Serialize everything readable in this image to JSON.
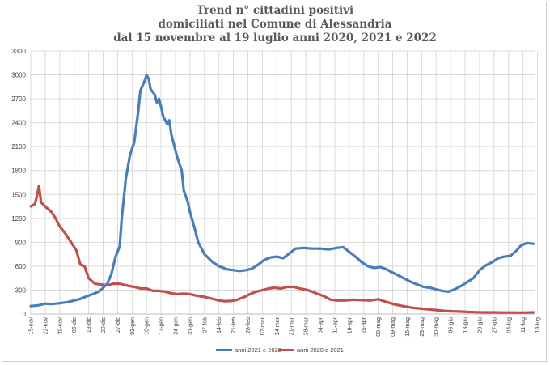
{
  "chart_data": {
    "type": "line",
    "title": [
      "Trend n° cittadini positivi",
      "domiciliati nel Comune di Alessandria",
      "dal 15 novembre al 19 luglio anni 2020, 2021 e 2022"
    ],
    "ylim": [
      0,
      3300
    ],
    "yticks": [
      0,
      300,
      600,
      900,
      1200,
      1500,
      1800,
      2100,
      2400,
      2700,
      3000,
      3300
    ],
    "x_ticklabels": [
      "15-nov",
      "22-nov",
      "29-nov",
      "06-dic",
      "13-dic",
      "20-dic",
      "27-dic",
      "03-gen",
      "10-gen",
      "17-gen",
      "24-gen",
      "31-gen",
      "07-feb",
      "14-feb",
      "21-feb",
      "28-feb",
      "07-mar",
      "14-mar",
      "21-mar",
      "28-mar",
      "04-apr",
      "11-apr",
      "18-apr",
      "25-apr",
      "02-mag",
      "09-mag",
      "16-mag",
      "23-mag",
      "30-mag",
      "06-giu",
      "13-giu",
      "20-giu",
      "27-giu",
      "04-lug",
      "11-lug",
      "18-lug"
    ],
    "grid": true,
    "legend_position": "bottom",
    "series": [
      {
        "name": "anni 2021 e 2022",
        "color": "#4a7ebb",
        "points": [
          [
            0,
            100
          ],
          [
            4,
            110
          ],
          [
            7,
            130
          ],
          [
            10,
            125
          ],
          [
            14,
            135
          ],
          [
            18,
            150
          ],
          [
            21,
            170
          ],
          [
            24,
            190
          ],
          [
            27,
            220
          ],
          [
            30,
            250
          ],
          [
            33,
            280
          ],
          [
            35,
            330
          ],
          [
            37,
            380
          ],
          [
            39,
            500
          ],
          [
            41,
            720
          ],
          [
            43,
            850
          ],
          [
            44,
            1200
          ],
          [
            46,
            1700
          ],
          [
            48,
            2000
          ],
          [
            50,
            2150
          ],
          [
            52,
            2550
          ],
          [
            53,
            2800
          ],
          [
            55,
            2920
          ],
          [
            56,
            3000
          ],
          [
            57,
            2950
          ],
          [
            58,
            2820
          ],
          [
            60,
            2750
          ],
          [
            61,
            2650
          ],
          [
            62,
            2700
          ],
          [
            63,
            2600
          ],
          [
            64,
            2480
          ],
          [
            66,
            2380
          ],
          [
            67,
            2430
          ],
          [
            68,
            2250
          ],
          [
            70,
            2050
          ],
          [
            71,
            1950
          ],
          [
            73,
            1800
          ],
          [
            74,
            1550
          ],
          [
            76,
            1400
          ],
          [
            77,
            1280
          ],
          [
            79,
            1100
          ],
          [
            81,
            900
          ],
          [
            84,
            750
          ],
          [
            88,
            650
          ],
          [
            91,
            600
          ],
          [
            95,
            560
          ],
          [
            98,
            550
          ],
          [
            101,
            540
          ],
          [
            104,
            550
          ],
          [
            107,
            570
          ],
          [
            110,
            620
          ],
          [
            113,
            680
          ],
          [
            116,
            710
          ],
          [
            119,
            720
          ],
          [
            122,
            700
          ],
          [
            125,
            760
          ],
          [
            128,
            820
          ],
          [
            132,
            830
          ],
          [
            136,
            820
          ],
          [
            140,
            820
          ],
          [
            144,
            810
          ],
          [
            148,
            830
          ],
          [
            151,
            840
          ],
          [
            154,
            780
          ],
          [
            157,
            720
          ],
          [
            160,
            650
          ],
          [
            163,
            600
          ],
          [
            166,
            580
          ],
          [
            169,
            590
          ],
          [
            172,
            560
          ],
          [
            175,
            520
          ],
          [
            178,
            480
          ],
          [
            181,
            440
          ],
          [
            184,
            400
          ],
          [
            187,
            370
          ],
          [
            190,
            340
          ],
          [
            193,
            330
          ],
          [
            196,
            310
          ],
          [
            199,
            290
          ],
          [
            202,
            280
          ],
          [
            205,
            310
          ],
          [
            208,
            350
          ],
          [
            211,
            400
          ],
          [
            214,
            450
          ],
          [
            217,
            550
          ],
          [
            220,
            610
          ],
          [
            223,
            650
          ],
          [
            226,
            700
          ],
          [
            229,
            720
          ],
          [
            232,
            730
          ],
          [
            235,
            800
          ],
          [
            237,
            860
          ],
          [
            240,
            890
          ],
          [
            243,
            880
          ]
        ]
      },
      {
        "name": "anni 2020 e 2021",
        "color": "#c0504d",
        "points": [
          [
            0,
            1350
          ],
          [
            2,
            1380
          ],
          [
            3,
            1480
          ],
          [
            4,
            1610
          ],
          [
            5,
            1400
          ],
          [
            7,
            1350
          ],
          [
            10,
            1280
          ],
          [
            12,
            1200
          ],
          [
            14,
            1100
          ],
          [
            17,
            1000
          ],
          [
            20,
            880
          ],
          [
            22,
            800
          ],
          [
            24,
            620
          ],
          [
            26,
            600
          ],
          [
            28,
            450
          ],
          [
            31,
            380
          ],
          [
            34,
            370
          ],
          [
            37,
            360
          ],
          [
            40,
            380
          ],
          [
            43,
            380
          ],
          [
            46,
            360
          ],
          [
            50,
            340
          ],
          [
            53,
            320
          ],
          [
            56,
            320
          ],
          [
            59,
            290
          ],
          [
            62,
            290
          ],
          [
            65,
            280
          ],
          [
            68,
            260
          ],
          [
            71,
            250
          ],
          [
            74,
            255
          ],
          [
            77,
            250
          ],
          [
            80,
            230
          ],
          [
            84,
            215
          ],
          [
            88,
            190
          ],
          [
            91,
            170
          ],
          [
            94,
            160
          ],
          [
            97,
            165
          ],
          [
            100,
            180
          ],
          [
            103,
            210
          ],
          [
            106,
            250
          ],
          [
            109,
            280
          ],
          [
            112,
            300
          ],
          [
            115,
            320
          ],
          [
            118,
            330
          ],
          [
            121,
            320
          ],
          [
            124,
            340
          ],
          [
            127,
            340
          ],
          [
            130,
            320
          ],
          [
            134,
            300
          ],
          [
            138,
            260
          ],
          [
            142,
            220
          ],
          [
            145,
            180
          ],
          [
            148,
            170
          ],
          [
            152,
            170
          ],
          [
            156,
            180
          ],
          [
            160,
            175
          ],
          [
            164,
            170
          ],
          [
            168,
            185
          ],
          [
            172,
            150
          ],
          [
            176,
            120
          ],
          [
            180,
            100
          ],
          [
            184,
            80
          ],
          [
            188,
            70
          ],
          [
            192,
            60
          ],
          [
            196,
            50
          ],
          [
            200,
            40
          ],
          [
            204,
            35
          ],
          [
            208,
            30
          ],
          [
            212,
            25
          ],
          [
            216,
            22
          ],
          [
            220,
            20
          ],
          [
            224,
            20
          ],
          [
            228,
            18
          ],
          [
            232,
            18
          ],
          [
            236,
            17
          ],
          [
            240,
            18
          ],
          [
            243,
            20
          ]
        ]
      }
    ]
  }
}
